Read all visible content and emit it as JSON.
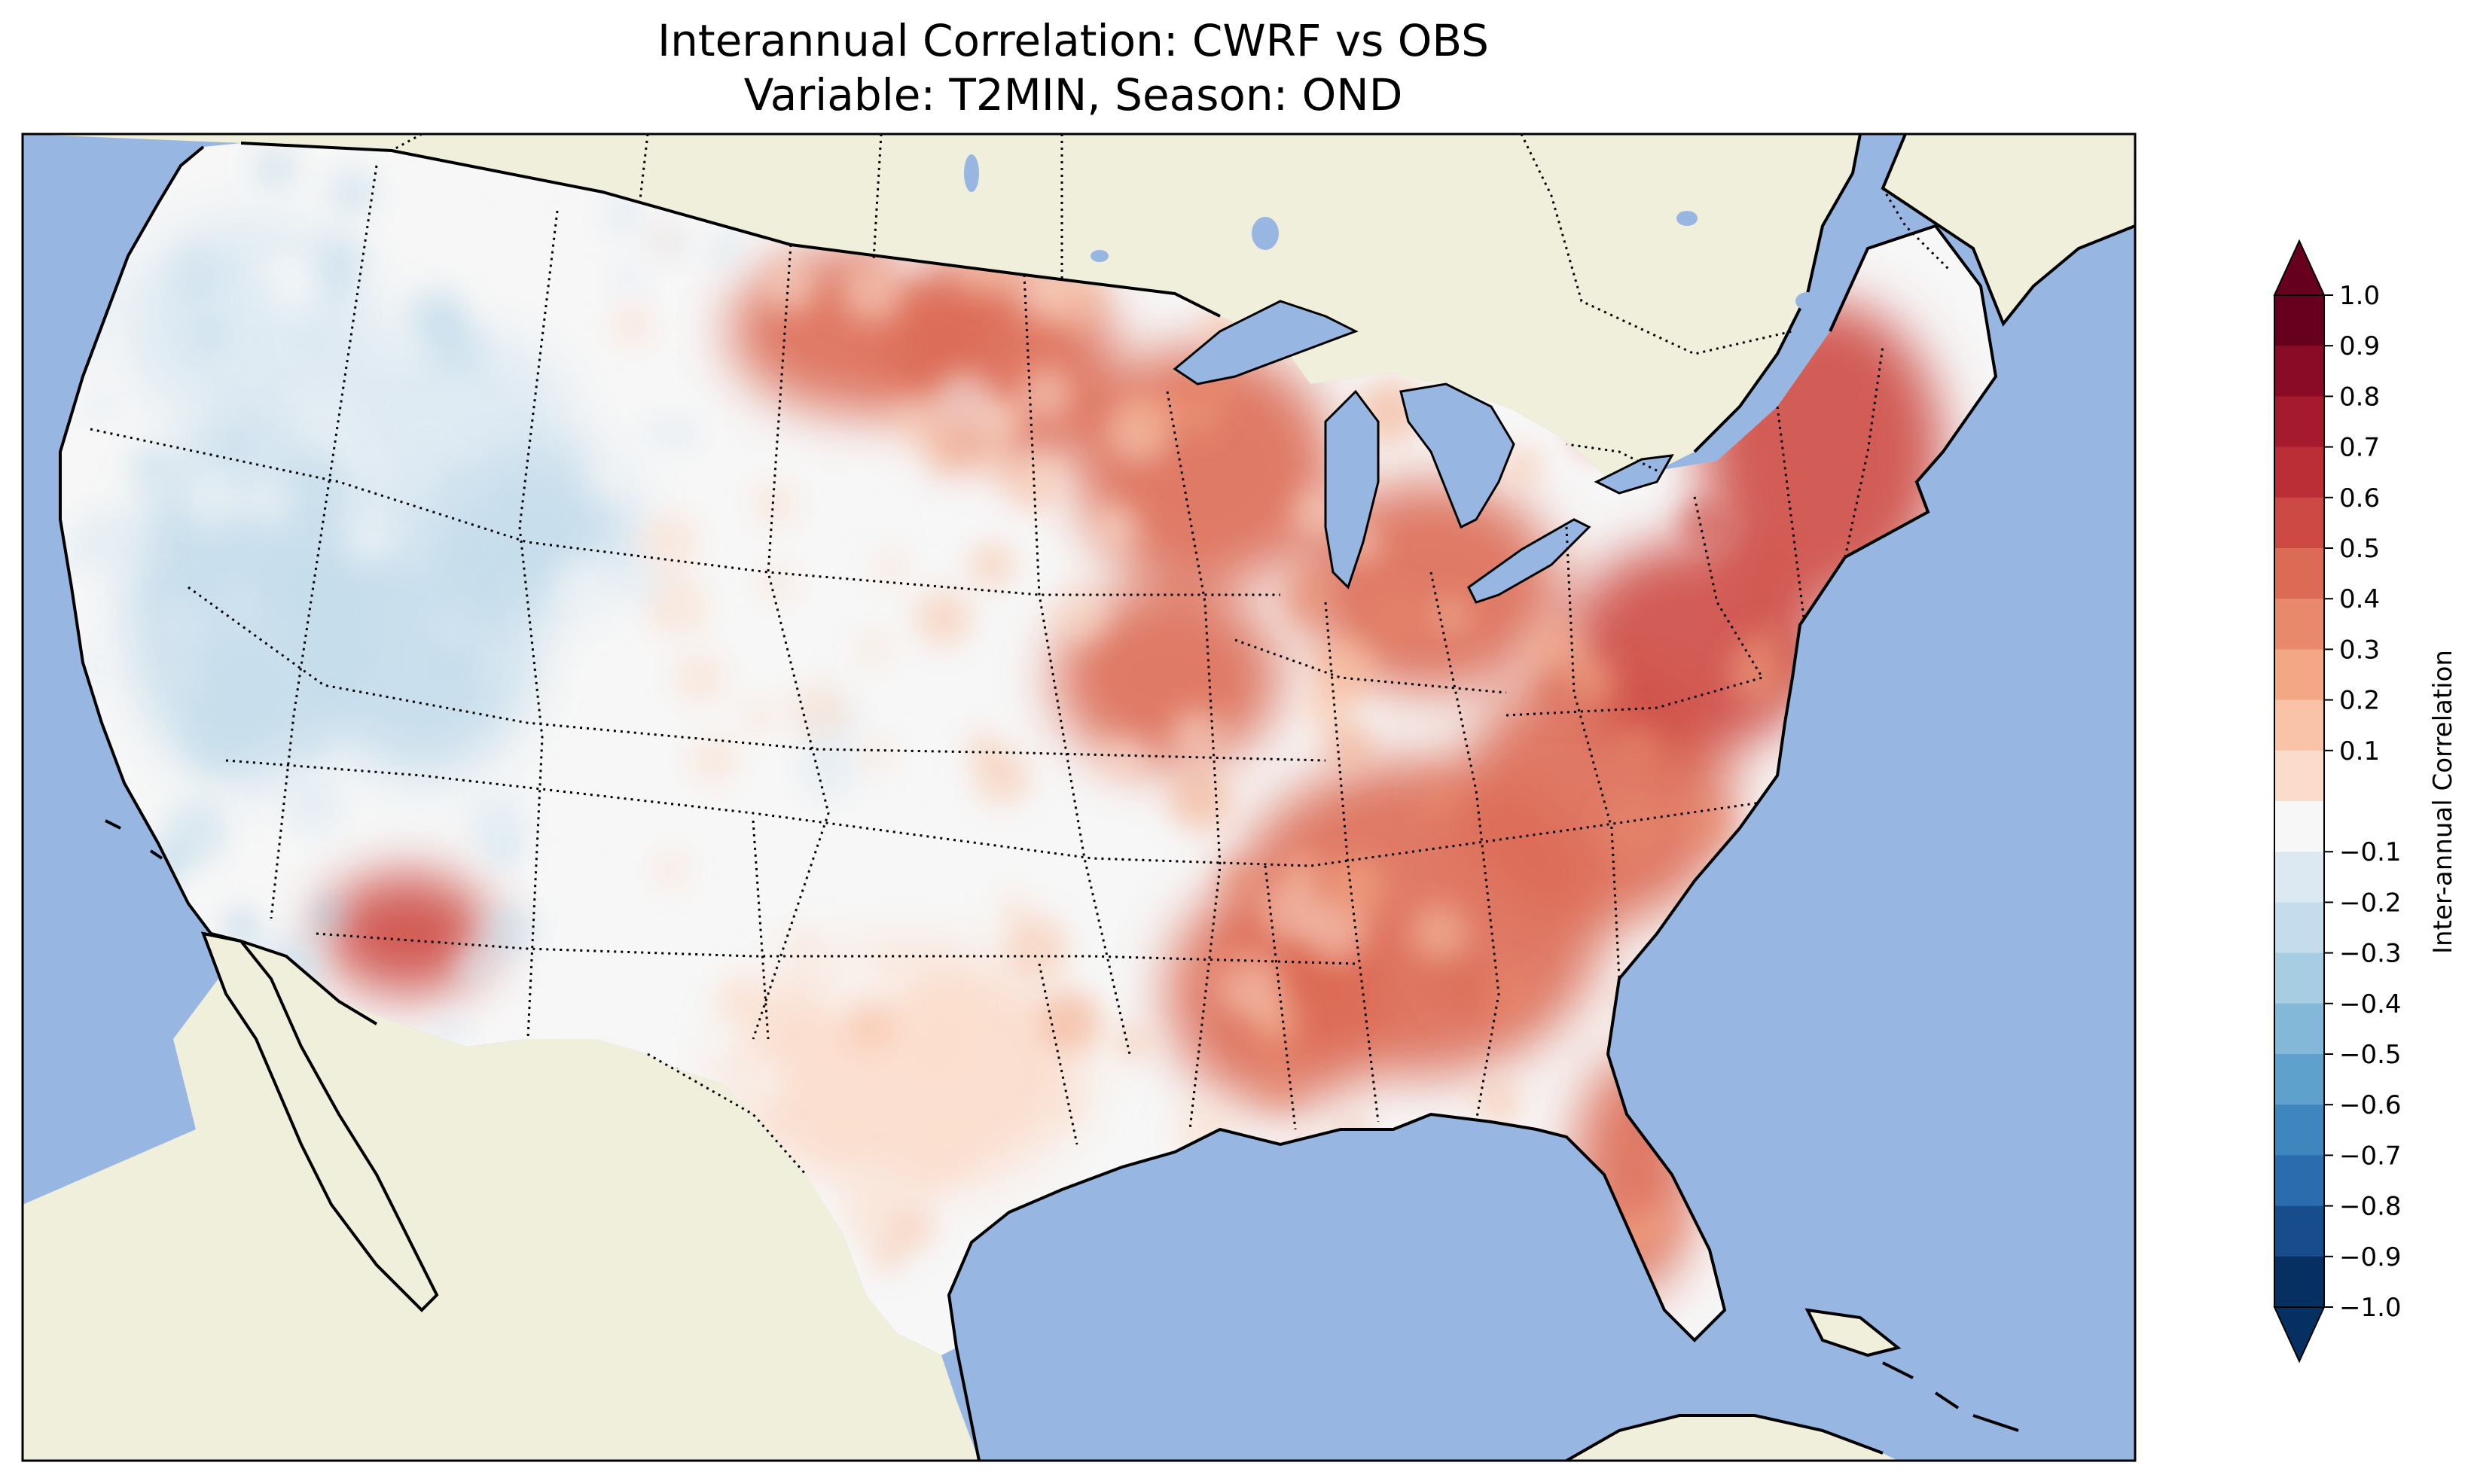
{
  "title": {
    "line1": "Interannual Correlation: CWRF vs OBS",
    "line2": "Variable: T2MIN, Season: OND"
  },
  "colorbar": {
    "label": "Inter-annual Correlation",
    "ticks": [
      "1.0",
      "0.9",
      "0.8",
      "0.7",
      "0.6",
      "0.5",
      "0.4",
      "0.3",
      "0.2",
      "0.1",
      "−0.1",
      "−0.2",
      "−0.3",
      "−0.4",
      "−0.5",
      "−0.6",
      "−0.7",
      "−0.8",
      "−0.9",
      "−1.0"
    ],
    "colors": [
      "#67001f",
      "#8a0b25",
      "#a51a2d",
      "#bc2e35",
      "#cd4a44",
      "#db6b55",
      "#e8896c",
      "#f3a785",
      "#f8c3a6",
      "#fbdccb",
      "#f7f7f7",
      "#dce9f2",
      "#c4dceb",
      "#a7cde3",
      "#84b8d8",
      "#5fa1cd",
      "#3d87be",
      "#2a6cad",
      "#184d8c",
      "#053061"
    ],
    "extend_top": "#67001f",
    "extend_bottom": "#053061"
  },
  "map": {
    "ocean_color": "#97b6e1",
    "land_color": "#efefdb",
    "lake_color": "#97b6e1",
    "region": "Contiguous United States",
    "field": "Interannual correlation of T2MIN (CWRF vs OBS), OND",
    "regions": [
      {
        "name": "Pacific Northwest",
        "value": -0.25
      },
      {
        "name": "Great Basin",
        "value": -0.35
      },
      {
        "name": "Southwest Arizona",
        "value": 0.55
      },
      {
        "name": "Northern Plains",
        "value": 0.45
      },
      {
        "name": "Midwest",
        "value": 0.45
      },
      {
        "name": "Southeast",
        "value": 0.5
      },
      {
        "name": "Northeast",
        "value": 0.55
      },
      {
        "name": "Texas",
        "value": 0.0
      },
      {
        "name": "Florida",
        "value": 0.45
      }
    ]
  }
}
